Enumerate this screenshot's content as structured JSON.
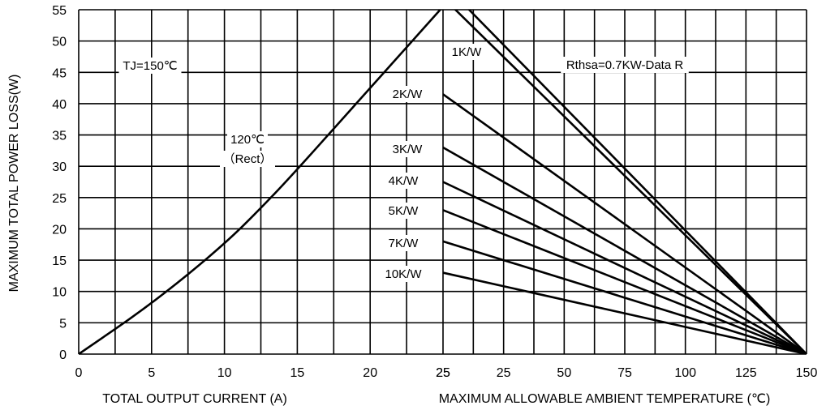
{
  "chart_data": {
    "type": "line",
    "ylabel": "MAXIMUM TOTAL POWER LOSS(W)",
    "ylim": [
      0,
      55
    ],
    "yticks": [
      "0",
      "5",
      "10",
      "15",
      "20",
      "25",
      "30",
      "35",
      "40",
      "45",
      "50",
      "55"
    ],
    "grid": true,
    "left_panel": {
      "xlabel": "TOTAL OUTPUT CURRENT (A)",
      "xlim": [
        0,
        25
      ],
      "xticks": [
        "0",
        "5",
        "10",
        "15",
        "20",
        "25"
      ],
      "series": [
        {
          "x": [
            0,
            5,
            10,
            13,
            15,
            17.5,
            20,
            22.5,
            25
          ],
          "y": [
            0,
            8,
            17.5,
            24.5,
            29.5,
            36,
            42.5,
            49,
            55.5
          ]
        }
      ],
      "annotations": [
        "TJ=150℃",
        "120℃",
        "（Rect）"
      ]
    },
    "right_panel": {
      "xlabel": "MAXIMUM ALLOWABLE AMBIENT TEMPERATURE (℃)",
      "xlim": [
        0,
        150
      ],
      "xticks": [
        "25",
        "25",
        "50",
        "75",
        "100",
        "125",
        "150"
      ],
      "series": [
        {
          "name": "Rthsa=0.7KW-Data R",
          "x": [
            9.5,
            150
          ],
          "y": [
            55.5,
            0
          ]
        },
        {
          "name": "1K/W",
          "x": [
            3.8,
            150
          ],
          "y": [
            55.5,
            0
          ]
        },
        {
          "name": "2K/W",
          "x": [
            0,
            150
          ],
          "y": [
            41.5,
            0
          ]
        },
        {
          "name": "3K/W",
          "x": [
            0,
            150
          ],
          "y": [
            33,
            0
          ]
        },
        {
          "name": "4K/W",
          "x": [
            0,
            150
          ],
          "y": [
            27.5,
            0
          ]
        },
        {
          "name": "5K/W",
          "x": [
            0,
            150
          ],
          "y": [
            23,
            0
          ]
        },
        {
          "name": "7K/W",
          "x": [
            0,
            150
          ],
          "y": [
            18,
            0
          ]
        },
        {
          "name": "10K/W",
          "x": [
            0,
            150
          ],
          "y": [
            13,
            0
          ]
        }
      ]
    }
  }
}
